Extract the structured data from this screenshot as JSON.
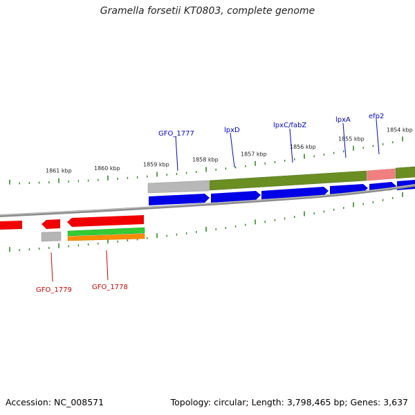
{
  "title": "Gramella forsetii KT0803, complete genome",
  "footer": {
    "accession": "Accession: NC_008571",
    "stats": "Topology: circular; Length: 3,798,465 bp; Genes: 3,637"
  },
  "colors": {
    "tick": "#2a8a1e",
    "backbone": "#8c8c8c",
    "forward_gene": "#0000e6",
    "reverse_gene": "#f00000",
    "upper_label": "#0000cc",
    "lower_label": "#cc0000",
    "cog_olive": "#6b8e23",
    "cog_gray": "#b5b5b5",
    "cog_pink": "#f08080",
    "cog_green": "#33cc33",
    "cog_orange": "#ff8c00"
  },
  "ruler": {
    "labels": [
      "1861 kbp",
      "1860 kbp",
      "1859 kbp",
      "1858 kbp",
      "1857 kbp",
      "1856 kbp",
      "1855 kbp",
      "1854 kbp"
    ]
  },
  "upper_labels": [
    "GFO_1777",
    "lpxD",
    "lpxC/fabZ",
    "lpxA",
    "efp2"
  ],
  "lower_labels": [
    "GFO_1779",
    "GFO_1778"
  ]
}
